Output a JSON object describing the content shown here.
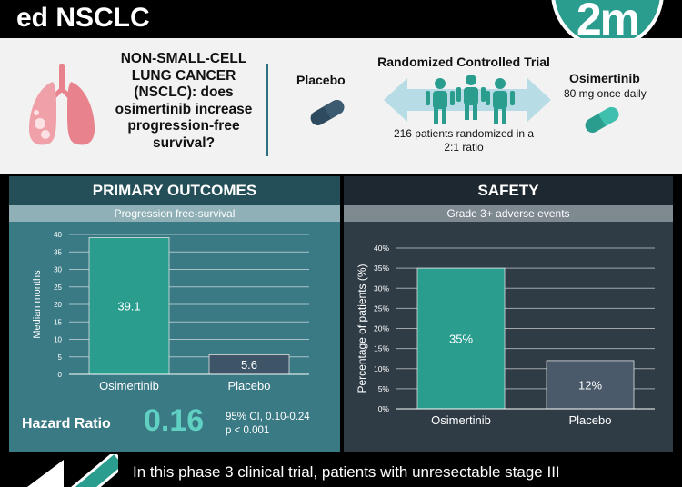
{
  "header": {
    "title": "ed NSCLC",
    "logo_text": "2m"
  },
  "intro": {
    "question": "NON-SMALL-CELL LUNG CANCER (NSCLC): does osimertinib increase progression-free survival?",
    "placebo_label": "Placebo",
    "trial_label": "Randomized Controlled Trial",
    "treatment_label": "Osimertinib",
    "treatment_dose": "80 mg once daily",
    "randomization_line1": "216 patients randomized in a",
    "randomization_line2": "2:1 ratio"
  },
  "primary": {
    "heading": "PRIMARY OUTCOMES",
    "subheading": "Progression free-survival",
    "hazard_ratio_label": "Hazard Ratio",
    "hazard_ratio_value": "0.16",
    "ci_text": "95% CI, 0.10-0.24",
    "p_text": "p < 0.001"
  },
  "safety": {
    "heading": "SAFETY",
    "subheading": "Grade 3+ adverse events"
  },
  "chart_data": [
    {
      "type": "bar",
      "categories": [
        "Osimertinib",
        "Placebo"
      ],
      "values": [
        39.1,
        5.6
      ],
      "value_labels": [
        "39.1",
        "5.6"
      ],
      "ylabel": "Median months",
      "ylim": [
        0,
        40
      ],
      "yticks": [
        0,
        5,
        10,
        15,
        20,
        25,
        30,
        35,
        40
      ],
      "ytick_labels": [
        "0",
        "5",
        "10",
        "15",
        "20",
        "25",
        "30",
        "35",
        "40"
      ],
      "colors": [
        "#2a9d8f",
        "#3d5566"
      ],
      "grid": true
    },
    {
      "type": "bar",
      "categories": [
        "Osimertinib",
        "Placebo"
      ],
      "values": [
        35,
        12
      ],
      "value_labels": [
        "35%",
        "12%"
      ],
      "ylabel": "Percentage of patients (%)",
      "ylim": [
        0,
        40
      ],
      "yticks": [
        0,
        5,
        10,
        15,
        20,
        25,
        30,
        35,
        40
      ],
      "ytick_labels": [
        "0%",
        "5%",
        "10%",
        "15%",
        "20%",
        "25%",
        "30%",
        "35%",
        "40%"
      ],
      "colors": [
        "#2a9d8f",
        "#4a5a6a"
      ],
      "grid": true
    }
  ],
  "footer": {
    "summary": "In this phase 3 clinical trial, patients with unresectable stage III"
  },
  "colors": {
    "teal": "#2a9d8f",
    "panel_left": "#3a7a85",
    "panel_right": "#2f3c46",
    "hr_value": "#5fd0c2"
  }
}
